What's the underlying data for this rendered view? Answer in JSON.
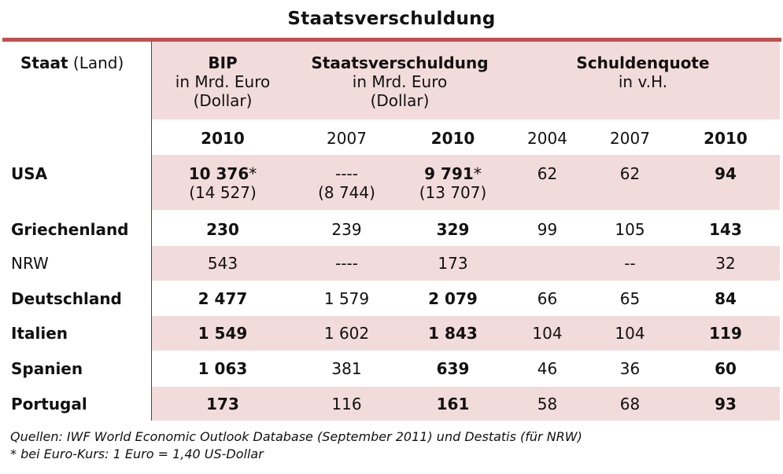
{
  "title": "Staatsverschuldung",
  "header": {
    "staat_bold": "Staat",
    "staat_rest": " (Land)",
    "bip": {
      "name": "BIP",
      "unit": "in Mrd. Euro",
      "alt": "(Dollar)"
    },
    "schuld": {
      "name": "Staatsverschuldung",
      "unit": "in Mrd. Euro",
      "alt": "(Dollar)"
    },
    "quote": {
      "name": "Schuldenquote",
      "unit": "in v.H."
    }
  },
  "years": [
    "2010",
    "2007",
    "2010",
    "2004",
    "2007",
    "2010"
  ],
  "rows": [
    {
      "country": "USA",
      "bold": true,
      "bip": "10 376",
      "bip_star": "*",
      "bip_dollar": "(14 527)",
      "s2007": "----",
      "s2007_dollar": "(8 744)",
      "s2010": "9 791",
      "s2010_star": "*",
      "s2010_dollar": "(13 707)",
      "q2004": "62",
      "q2007": "62",
      "q2010": "94"
    },
    {
      "country": "Griechenland",
      "bold": true,
      "bip": "230",
      "s2007": "239",
      "s2010": "329",
      "q2004": "99",
      "q2007": "105",
      "q2010": "143"
    },
    {
      "country": "NRW",
      "bold": false,
      "bip": "543",
      "s2007": "----",
      "s2010": "173",
      "q2004": "",
      "q2007": "--",
      "q2010": "32"
    },
    {
      "country": "Deutschland",
      "bold": true,
      "bip": "2 477",
      "s2007": "1 579",
      "s2010": "2 079",
      "q2004": "66",
      "q2007": "65",
      "q2010": "84"
    },
    {
      "country": "Italien",
      "bold": true,
      "bip": "1 549",
      "s2007": "1 602",
      "s2010": "1 843",
      "q2004": "104",
      "q2007": "104",
      "q2010": "119"
    },
    {
      "country": "Spanien",
      "bold": true,
      "bip": "1 063",
      "s2007": "381",
      "s2010": "639",
      "q2004": "46",
      "q2007": "36",
      "q2010": "60"
    },
    {
      "country": "Portugal",
      "bold": true,
      "bip": "173",
      "s2007": "116",
      "s2010": "161",
      "q2004": "58",
      "q2007": "68",
      "q2010": "93"
    }
  ],
  "notes": [
    "Quellen: IWF World Economic Outlook Database (September 2011) und Destatis (für NRW)",
    "* bei Euro-Kurs: 1 Euro = 1,40 US-Dollar"
  ],
  "colors": {
    "accent_rule": "#c0504d",
    "band": "#f2dcdb"
  }
}
